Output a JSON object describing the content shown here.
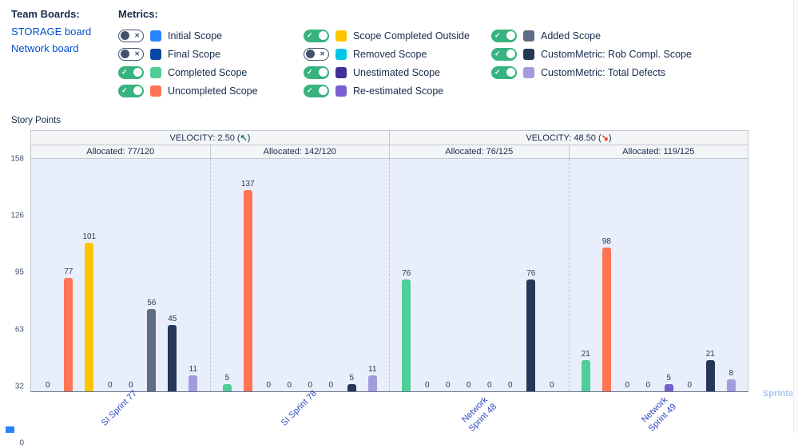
{
  "team_boards": {
    "title": "Team Boards:",
    "boards": [
      {
        "label": "STORAGE board"
      },
      {
        "label": "Network board"
      }
    ]
  },
  "metrics": {
    "title": "Metrics:",
    "items": [
      {
        "label": "Initial Scope",
        "color": "#2684FF",
        "enabled": false
      },
      {
        "label": "Final Scope",
        "color": "#0747A6",
        "enabled": false
      },
      {
        "label": "Completed Scope",
        "color": "#4FCE97",
        "enabled": true
      },
      {
        "label": "Uncompleted Scope",
        "color": "#FF7452",
        "enabled": true
      },
      {
        "label": "Scope Completed Outside",
        "color": "#FFC400",
        "enabled": true
      },
      {
        "label": "Removed Scope",
        "color": "#00C7E6",
        "enabled": false
      },
      {
        "label": "Unestimated Scope",
        "color": "#403294",
        "enabled": true
      },
      {
        "label": "Re-estimated Scope",
        "color": "#7A5FD0",
        "enabled": true
      },
      {
        "label": "Added Scope",
        "color": "#5E6C84",
        "enabled": true
      },
      {
        "label": "CustomMetric: Rob Compl. Scope",
        "color": "#253858",
        "enabled": true
      },
      {
        "label": "CustomMetric: Total Defects",
        "color": "#A49BDE",
        "enabled": true
      }
    ]
  },
  "colors": {
    "link": "#0052CC",
    "toggle_on": "#36B37E",
    "trend_up": "#00875A",
    "trend_down": "#DE350B",
    "plot_background": "#E9EEFB"
  },
  "chart_data": {
    "type": "bar",
    "title": "Story Points",
    "ylabel": "Story Points",
    "xlabel": "Sprints",
    "ylim": [
      0,
      158
    ],
    "yticks": [
      158,
      126,
      95,
      63,
      32,
      0
    ],
    "grid": false,
    "legend_position": "top",
    "velocity_headers": [
      {
        "label": "VELOCITY: 2.50",
        "arrow": "↖",
        "trend": "up",
        "arrow_color": "#00875A",
        "span": 2
      },
      {
        "label": "VELOCITY: 48.50",
        "arrow": "↘",
        "trend": "down",
        "arrow_color": "#DE350B",
        "span": 2
      }
    ],
    "allocation_headers": [
      "Allocated: 77/120",
      "Allocated: 142/120",
      "Allocated: 76/125",
      "Allocated: 119/125"
    ],
    "categories": [
      "SI Sprint 77",
      "SI Sprint 78",
      "Network Sprint 48",
      "Network Sprint 49"
    ],
    "series": [
      {
        "name": "Completed Scope",
        "color": "#4FCE97",
        "values": [
          0,
          5,
          76,
          21
        ]
      },
      {
        "name": "Uncompleted Scope",
        "color": "#FF7452",
        "values": [
          77,
          137,
          0,
          98
        ]
      },
      {
        "name": "Scope Completed Outside",
        "color": "#FFC400",
        "values": [
          101,
          0,
          0,
          0
        ]
      },
      {
        "name": "Unestimated Scope",
        "color": "#403294",
        "values": [
          0,
          0,
          0,
          0
        ]
      },
      {
        "name": "Re-estimated Scope",
        "color": "#7A5FD0",
        "values": [
          0,
          0,
          0,
          5
        ]
      },
      {
        "name": "Added Scope",
        "color": "#5E6C84",
        "values": [
          56,
          0,
          0,
          0
        ]
      },
      {
        "name": "CustomMetric: Rob Compl. Scope",
        "color": "#253858",
        "values": [
          45,
          5,
          76,
          21
        ]
      },
      {
        "name": "CustomMetric: Total Defects",
        "color": "#A49BDE",
        "values": [
          11,
          11,
          0,
          8
        ]
      }
    ]
  }
}
